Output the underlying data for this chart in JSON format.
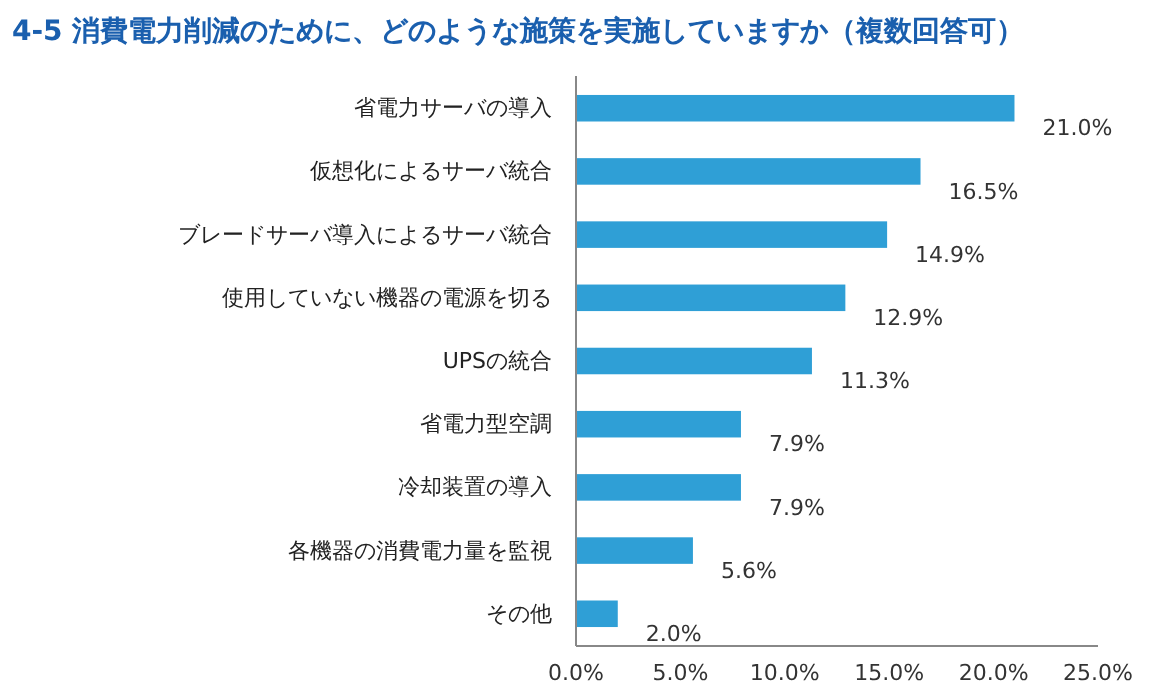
{
  "chart_data": {
    "type": "bar",
    "orientation": "horizontal",
    "title": "4-5  消費電力削減のために、どのような施策を実施していますか（複数回答可）",
    "categories": [
      "省電力サーバの導入",
      "仮想化によるサーバ統合",
      "ブレードサーバ導入によるサーバ統合",
      "使用していない機器の電源を切る",
      "UPSの統合",
      "省電力型空調",
      "冷却装置の導入",
      "各機器の消費電力量を監視",
      "その他"
    ],
    "values": [
      21.0,
      16.5,
      14.9,
      12.9,
      11.3,
      7.9,
      7.9,
      5.6,
      2.0
    ],
    "value_labels": [
      "21.0%",
      "16.5%",
      "14.9%",
      "12.9%",
      "11.3%",
      "7.9%",
      "7.9%",
      "5.6%",
      "2.0%"
    ],
    "color": "#2f9fd6",
    "xlim": [
      0,
      25
    ],
    "xticks": [
      {
        "value": 0,
        "label": "0.0%"
      },
      {
        "value": 5,
        "label": "5.0%"
      },
      {
        "value": 10,
        "label": "10.0%"
      },
      {
        "value": 15,
        "label": "15.0%"
      },
      {
        "value": 20,
        "label": "20.0%"
      },
      {
        "value": 25,
        "label": "25.0%"
      }
    ],
    "grid": false
  }
}
